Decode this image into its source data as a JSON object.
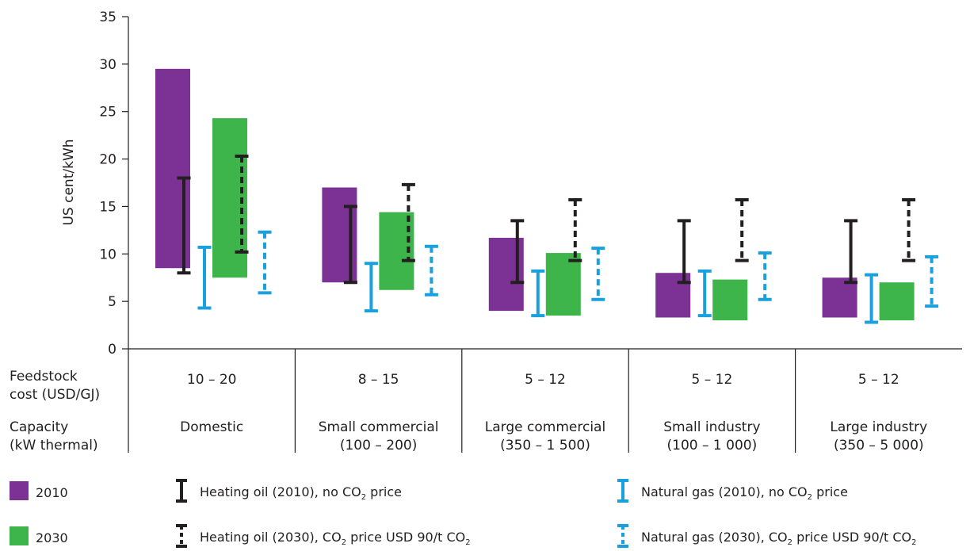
{
  "chart_data": {
    "type": "bar",
    "ylabel": "US cent/kWh",
    "ylim": [
      0,
      35
    ],
    "yticks": [
      0,
      5,
      10,
      15,
      20,
      25,
      30,
      35
    ],
    "feedstock_label": [
      "Feedstock",
      "cost (USD/GJ)"
    ],
    "capacity_label": [
      "Capacity",
      "(kW thermal)"
    ],
    "categories": [
      {
        "feedstock": "10 – 20",
        "capacity": [
          "Domestic",
          ""
        ]
      },
      {
        "feedstock": "8 – 15",
        "capacity": [
          "Small commercial",
          "(100 – 200)"
        ]
      },
      {
        "feedstock": "5 – 12",
        "capacity": [
          "Large commercial",
          "(350 – 1 500)"
        ]
      },
      {
        "feedstock": "5 – 12",
        "capacity": [
          "Small industry",
          "(100 – 1 000)"
        ]
      },
      {
        "feedstock": "5 – 12",
        "capacity": [
          "Large industry",
          "(350 – 5 000)"
        ]
      }
    ],
    "series": [
      {
        "name": "2010",
        "kind": "range-bar",
        "color": "#7b3294",
        "ranges": [
          [
            8.5,
            29.5
          ],
          [
            7.0,
            17.0
          ],
          [
            4.0,
            11.7
          ],
          [
            3.3,
            8.0
          ],
          [
            3.3,
            7.5
          ]
        ]
      },
      {
        "name": "2030",
        "kind": "range-bar",
        "color": "#3db54a",
        "ranges": [
          [
            7.5,
            24.3
          ],
          [
            6.2,
            14.4
          ],
          [
            3.5,
            10.1
          ],
          [
            3.0,
            7.3
          ],
          [
            3.0,
            7.0
          ]
        ]
      },
      {
        "name": "Heating oil (2010), no CO₂ price",
        "kind": "error",
        "style": "solid",
        "color": "#231f20",
        "ranges": [
          [
            8.0,
            18.0
          ],
          [
            7.0,
            15.0
          ],
          [
            7.0,
            13.5
          ],
          [
            7.0,
            13.5
          ],
          [
            7.0,
            13.5
          ]
        ]
      },
      {
        "name": "Natural gas (2010), no CO₂ price",
        "kind": "error",
        "style": "solid",
        "color": "#1aa0dc",
        "ranges": [
          [
            4.3,
            10.7
          ],
          [
            4.0,
            9.0
          ],
          [
            3.5,
            8.2
          ],
          [
            3.5,
            8.2
          ],
          [
            2.8,
            7.8
          ]
        ]
      },
      {
        "name": "Heating oil (2030), CO₂ price USD 90/t CO₂",
        "kind": "error",
        "style": "dashed",
        "color": "#231f20",
        "ranges": [
          [
            10.2,
            20.3
          ],
          [
            9.3,
            17.3
          ],
          [
            9.3,
            15.7
          ],
          [
            9.3,
            15.7
          ],
          [
            9.3,
            15.7
          ]
        ]
      },
      {
        "name": "Natural gas (2030), CO₂ price USD 90/t CO₂",
        "kind": "error",
        "style": "dashed",
        "color": "#1aa0dc",
        "ranges": [
          [
            5.9,
            12.3
          ],
          [
            5.7,
            10.8
          ],
          [
            5.2,
            10.6
          ],
          [
            5.2,
            10.1
          ],
          [
            4.5,
            9.7
          ]
        ]
      }
    ],
    "grid": false,
    "legend_position": "bottom"
  }
}
